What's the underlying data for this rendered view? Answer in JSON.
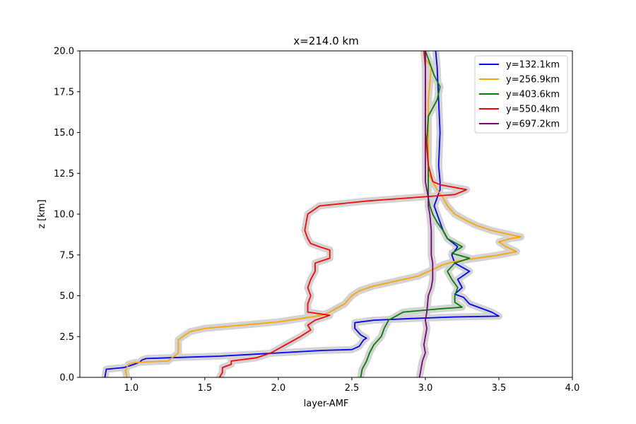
{
  "chart_data": {
    "type": "line",
    "title": "x=214.0 km",
    "xlabel": "layer-AMF",
    "ylabel": "z [km]",
    "xlim": [
      0.65,
      4.0
    ],
    "ylim": [
      0,
      20
    ],
    "xticks": [
      "1.0",
      "1.5",
      "2.0",
      "2.5",
      "3.0",
      "3.5",
      "4.0"
    ],
    "yticks": [
      "0.0",
      "2.5",
      "5.0",
      "7.5",
      "10.0",
      "12.5",
      "15.0",
      "17.5",
      "20.0"
    ],
    "xtick_values": [
      1.0,
      1.5,
      2.0,
      2.5,
      3.0,
      3.5,
      4.0
    ],
    "ytick_values": [
      0,
      2.5,
      5.0,
      7.5,
      10.0,
      12.5,
      15.0,
      17.5,
      20.0
    ],
    "grid": false,
    "legend_position": "top-right",
    "uncertainty_band_color": "#d3d3d3",
    "series": [
      {
        "name": "y=132.1km",
        "color": "#0000ff",
        "x": [
          0.82,
          0.83,
          0.95,
          1.02,
          1.06,
          1.07,
          1.1,
          1.25,
          1.6,
          2.0,
          2.3,
          2.5,
          2.55,
          2.58,
          2.6,
          2.56,
          2.52,
          2.52,
          2.65,
          2.9,
          3.2,
          3.5,
          3.45,
          3.3,
          3.26,
          3.2,
          3.25,
          3.22,
          3.3,
          3.2,
          3.18,
          3.22,
          3.15,
          3.12,
          3.1,
          3.08,
          3.06,
          3.1,
          3.1,
          3.09,
          3.1,
          3.09,
          3.08,
          3.07
        ],
        "y": [
          0.0,
          0.5,
          0.6,
          0.8,
          0.95,
          1.05,
          1.15,
          1.2,
          1.3,
          1.5,
          1.65,
          1.7,
          1.9,
          2.3,
          2.4,
          2.6,
          3.0,
          3.35,
          3.5,
          3.6,
          3.7,
          3.75,
          4.0,
          4.5,
          4.9,
          5.1,
          5.5,
          6.0,
          6.5,
          7.0,
          7.5,
          8.0,
          8.5,
          9.0,
          9.5,
          10.0,
          10.5,
          11.5,
          12.0,
          13.0,
          15.0,
          17.0,
          19.0,
          20.0
        ]
      },
      {
        "name": "y=256.9km",
        "color": "#ffa500",
        "x": [
          0.97,
          0.96,
          0.98,
          1.02,
          1.1,
          1.25,
          1.32,
          1.32,
          1.35,
          1.4,
          1.5,
          1.75,
          2.0,
          2.15,
          2.3,
          2.35,
          2.45,
          2.5,
          2.55,
          2.65,
          2.8,
          2.95,
          3.05,
          3.12,
          3.2,
          3.35,
          3.5,
          3.62,
          3.55,
          3.5,
          3.58,
          3.65,
          3.55,
          3.45,
          3.35,
          3.28,
          3.2,
          3.15,
          3.12,
          3.08,
          3.05,
          3.02,
          3.02,
          3.02,
          3.03,
          3.04,
          3.0,
          3.0
        ],
        "y": [
          0.0,
          0.4,
          0.8,
          0.9,
          0.95,
          1.0,
          1.5,
          2.3,
          2.5,
          2.8,
          3.0,
          3.2,
          3.4,
          3.6,
          3.8,
          4.0,
          4.5,
          5.0,
          5.3,
          5.6,
          5.9,
          6.2,
          6.6,
          6.9,
          7.1,
          7.3,
          7.5,
          7.7,
          8.0,
          8.3,
          8.5,
          8.6,
          8.8,
          9.0,
          9.3,
          9.6,
          10.0,
          10.5,
          11.0,
          11.5,
          12.0,
          12.5,
          15.0,
          17.0,
          18.0,
          19.0,
          19.5,
          20.0
        ]
      },
      {
        "name": "y=403.6km",
        "color": "#008000",
        "x": [
          2.56,
          2.57,
          2.6,
          2.62,
          2.65,
          2.7,
          2.72,
          2.75,
          2.85,
          3.1,
          3.25,
          3.2,
          3.2,
          3.22,
          3.18,
          3.15,
          3.2,
          3.3,
          3.18,
          3.25,
          3.15,
          3.12,
          3.08,
          3.05,
          3.03,
          3.02,
          3.02,
          3.02,
          3.01,
          3.02,
          3.08,
          3.1,
          3.06,
          3.02,
          3.0
        ],
        "y": [
          0.0,
          0.5,
          1.0,
          1.5,
          2.0,
          2.5,
          3.0,
          3.5,
          4.0,
          4.2,
          4.3,
          4.6,
          5.0,
          5.5,
          6.0,
          6.5,
          7.0,
          7.3,
          7.6,
          8.0,
          8.5,
          9.0,
          9.5,
          10.0,
          10.5,
          11.0,
          12.0,
          13.0,
          14.5,
          16.0,
          17.0,
          17.8,
          18.5,
          19.5,
          20.0
        ]
      },
      {
        "name": "y=550.4km",
        "color": "#ff0000",
        "x": [
          1.6,
          1.62,
          1.62,
          1.68,
          1.68,
          1.85,
          1.95,
          2.05,
          2.15,
          2.22,
          2.2,
          2.25,
          2.35,
          2.2,
          2.2,
          2.22,
          2.2,
          2.22,
          2.25,
          2.25,
          2.35,
          2.35,
          2.28,
          2.22,
          2.2,
          2.18,
          2.2,
          2.28,
          2.6,
          2.9,
          3.2,
          3.28,
          3.1,
          3.05,
          3.02,
          3.0,
          3.0,
          3.0,
          2.99
        ],
        "y": [
          0.0,
          0.3,
          0.6,
          0.8,
          1.0,
          1.2,
          1.5,
          2.0,
          2.5,
          2.9,
          3.2,
          3.5,
          3.8,
          4.0,
          4.5,
          5.0,
          5.5,
          6.0,
          6.5,
          7.0,
          7.3,
          7.8,
          8.0,
          8.2,
          8.5,
          9.0,
          10.0,
          10.5,
          10.8,
          11.0,
          11.2,
          11.5,
          11.8,
          12.0,
          13.0,
          15.0,
          17.0,
          19.0,
          20.0
        ]
      },
      {
        "name": "y=697.2km",
        "color": "#800080",
        "x": [
          2.96,
          2.97,
          2.98,
          3.0,
          2.99,
          3.0,
          3.01,
          3.0,
          3.01,
          3.02,
          3.04,
          3.05,
          3.05,
          3.05,
          3.04,
          3.04,
          3.04,
          3.03,
          3.02,
          3.02,
          3.01,
          3.0,
          3.0,
          3.0,
          3.0,
          3.0,
          3.0,
          3.0
        ],
        "y": [
          0.0,
          0.5,
          1.0,
          1.5,
          2.0,
          2.5,
          3.0,
          3.5,
          4.0,
          5.0,
          5.5,
          6.0,
          6.5,
          7.0,
          7.5,
          8.0,
          9.0,
          10.0,
          10.5,
          11.0,
          11.5,
          12.0,
          13.0,
          14.0,
          15.0,
          17.0,
          19.0,
          20.0
        ]
      }
    ]
  }
}
